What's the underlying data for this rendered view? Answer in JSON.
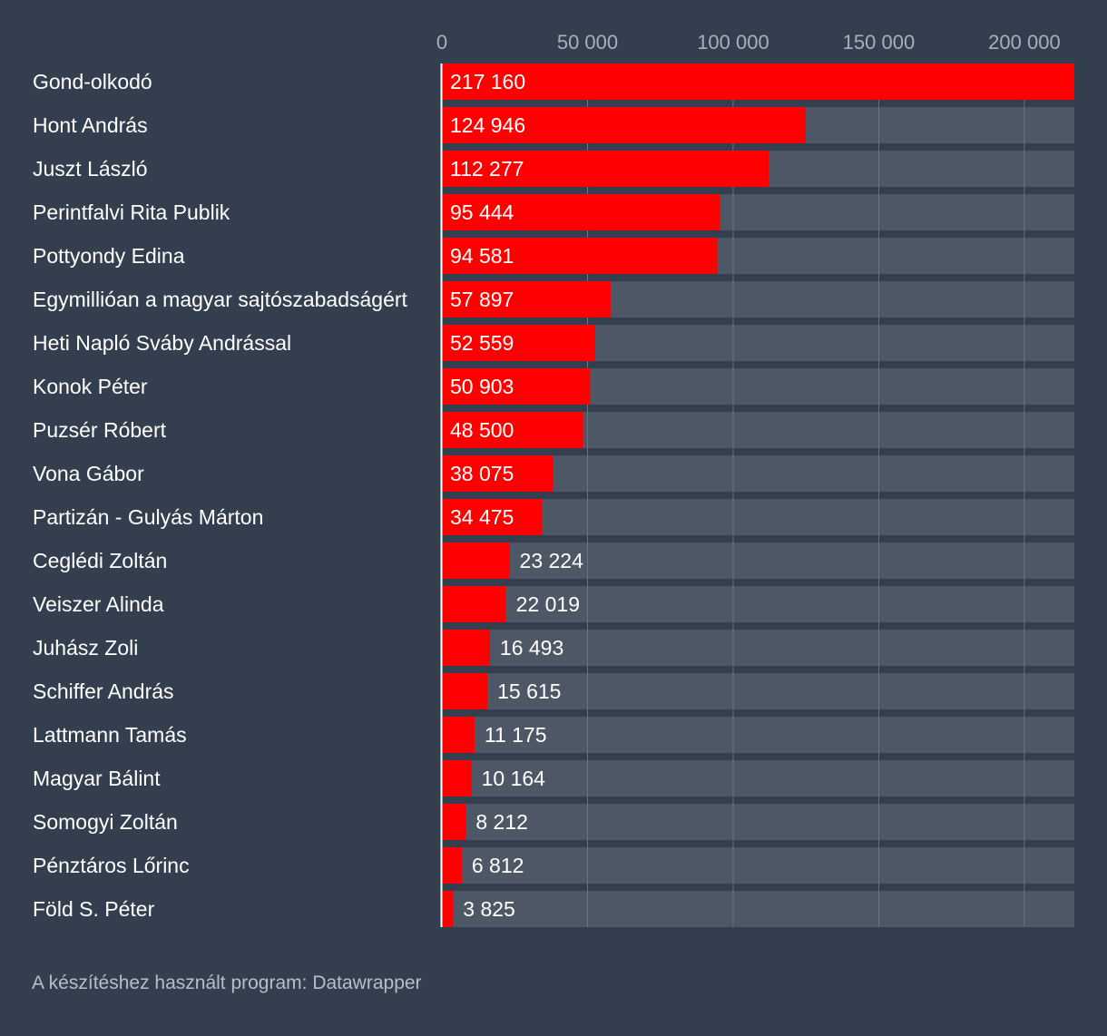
{
  "colors": {
    "background": "#333e4e",
    "bar": "#ff0000",
    "track": "#4d5766",
    "grid": "#6b7482",
    "tick_text": "#a9b0ba",
    "label_text": "#ffffff",
    "baseline": "#ffffff"
  },
  "chart_data": {
    "type": "bar",
    "orientation": "horizontal",
    "title": "",
    "xlabel": "",
    "ylabel": "",
    "xlim": [
      0,
      217160
    ],
    "ticks": [
      {
        "value": 0,
        "label": "0"
      },
      {
        "value": 50000,
        "label": "50 000"
      },
      {
        "value": 100000,
        "label": "100 000"
      },
      {
        "value": 150000,
        "label": "150 000"
      },
      {
        "value": 200000,
        "label": "200 000"
      }
    ],
    "grid": true,
    "categories": [
      "Gond-olkodó",
      "Hont András",
      "Juszt László",
      "Perintfalvi Rita Publik",
      "Pottyondy Edina",
      "Egymillióan a magyar sajtószabadságért",
      "Heti Napló Sváby Andrással",
      "Konok Péter",
      "Puzsér Róbert",
      "Vona Gábor",
      "Partizán - Gulyás Márton",
      "Ceglédi Zoltán",
      "Veiszer Alinda",
      "Juhász Zoli",
      "Schiffer András",
      "Lattmann Tamás",
      "Magyar Bálint",
      "Somogyi Zoltán",
      "Pénztáros Lőrinc",
      "Föld S. Péter"
    ],
    "values": [
      217160,
      124946,
      112277,
      95444,
      94581,
      57897,
      52559,
      50903,
      48500,
      38075,
      34475,
      23224,
      22019,
      16493,
      15615,
      11175,
      10164,
      8212,
      6812,
      3825
    ],
    "value_labels": [
      "217 160",
      "124 946",
      "112 277",
      "95 444",
      "94 581",
      "57 897",
      "52 559",
      "50 903",
      "48 500",
      "38 075",
      "34 475",
      "23 224",
      "22 019",
      "16 493",
      "15 615",
      "11 175",
      "10 164",
      "8 212",
      "6 812",
      "3 825"
    ]
  },
  "footer": {
    "credit": "A készítéshez használt program: Datawrapper"
  }
}
